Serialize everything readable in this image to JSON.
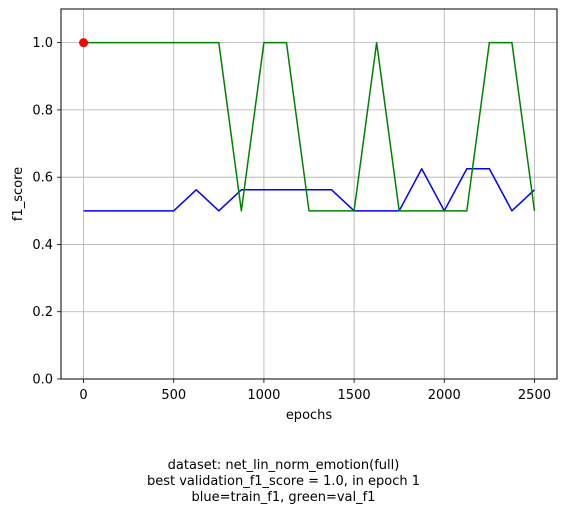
{
  "chart_data": {
    "type": "line",
    "xlabel": "epochs",
    "ylabel": "f1_score",
    "xlim": [
      -125,
      2625
    ],
    "ylim": [
      0,
      1.1
    ],
    "xticks": [
      0,
      500,
      1000,
      1500,
      2000,
      2500
    ],
    "yticks": [
      0.0,
      0.2,
      0.4,
      0.6,
      0.8,
      1.0
    ],
    "grid": true,
    "series": [
      {
        "color": "#0000ff",
        "x": [
          0,
          125,
          250,
          375,
          500,
          625,
          750,
          875,
          1000,
          1125,
          1250,
          1375,
          1500,
          1625,
          1750,
          1875,
          2000,
          2125,
          2250,
          2375,
          2500
        ],
        "y": [
          0.5,
          0.5,
          0.5,
          0.5,
          0.5,
          0.5625,
          0.5,
          0.5625,
          0.5625,
          0.5625,
          0.5625,
          0.5625,
          0.5,
          0.5,
          0.5,
          0.625,
          0.5,
          0.625,
          0.625,
          0.5,
          0.5625
        ]
      },
      {
        "color": "#008000",
        "x": [
          0,
          125,
          250,
          375,
          500,
          625,
          750,
          875,
          1000,
          1125,
          1250,
          1375,
          1500,
          1625,
          1750,
          1875,
          2000,
          2125,
          2250,
          2375,
          2500
        ],
        "y": [
          1.0,
          1.0,
          1.0,
          1.0,
          1.0,
          1.0,
          1.0,
          0.5,
          1.0,
          1.0,
          0.5,
          0.5,
          0.5,
          1.0,
          0.5,
          0.5,
          0.5,
          0.5,
          1.0,
          1.0,
          0.5
        ]
      }
    ],
    "marker": {
      "x": 0,
      "y": 1.0,
      "color": "#ff0000"
    }
  },
  "caption": {
    "line1": "dataset: net_lin_norm_emotion(full)",
    "line2": "best validation_f1_score = 1.0, in epoch 1",
    "line3": "blue=train_f1, green=val_f1"
  }
}
